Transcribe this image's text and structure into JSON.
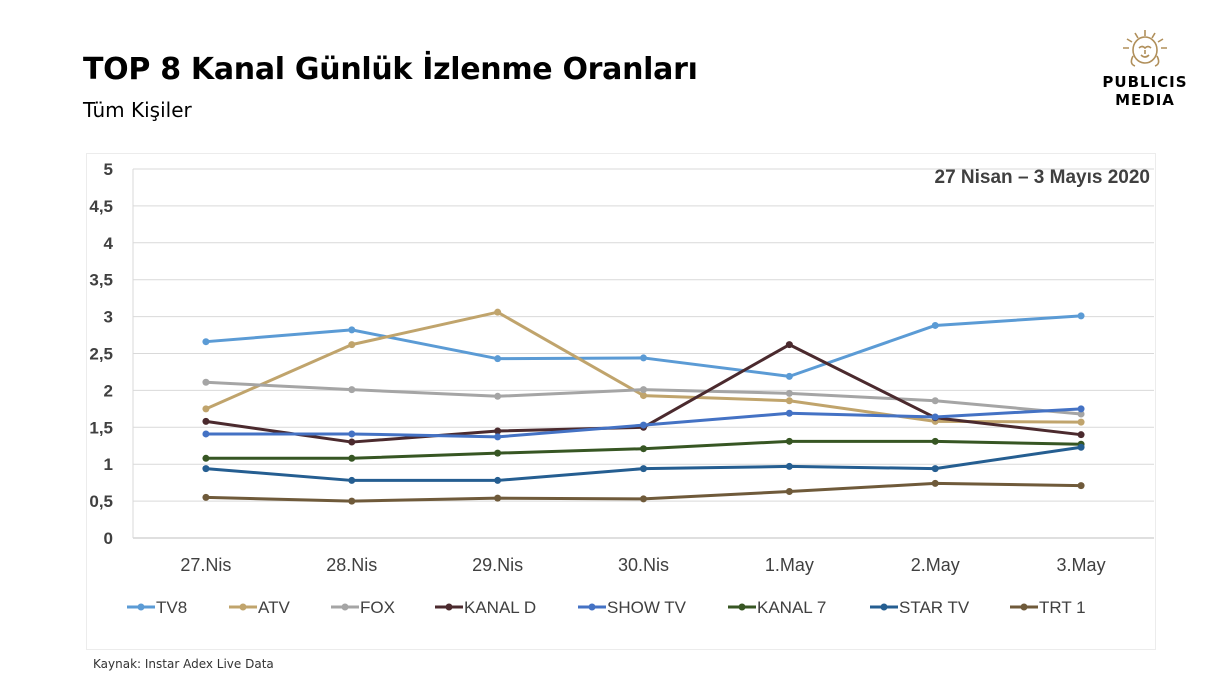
{
  "header": {
    "title": "TOP 8 Kanal Günlük İzlenme Oranları",
    "subtitle": "Tüm Kişiler"
  },
  "logo": {
    "line1": "PUBLICIS",
    "line2": "MEDIA",
    "icon": "lion-head-icon",
    "color": "#b08f5a"
  },
  "source": "Kaynak: Instar  Adex Live Data",
  "chart_data": {
    "type": "line",
    "annotation": "27 Nisan – 3 Mayıs 2020",
    "categories": [
      "27.Nis",
      "28.Nis",
      "29.Nis",
      "30.Nis",
      "1.May",
      "2.May",
      "3.May"
    ],
    "yticks": [
      "0",
      "0,5",
      "1",
      "1,5",
      "2",
      "2,5",
      "3",
      "3,5",
      "4",
      "4,5",
      "5"
    ],
    "ylim": [
      0,
      5
    ],
    "grid": true,
    "legend_position": "bottom",
    "series": [
      {
        "name": "TV8",
        "color": "#5b9bd5",
        "values": [
          2.66,
          2.82,
          2.43,
          2.44,
          2.19,
          2.88,
          3.01
        ]
      },
      {
        "name": "ATV",
        "color": "#c0a46c",
        "values": [
          1.75,
          2.62,
          3.06,
          1.93,
          1.86,
          1.58,
          1.57
        ]
      },
      {
        "name": "FOX",
        "color": "#a5a5a5",
        "values": [
          2.11,
          2.01,
          1.92,
          2.01,
          1.96,
          1.86,
          1.68
        ]
      },
      {
        "name": "KANAL D",
        "color": "#4b2a2e",
        "values": [
          1.58,
          1.3,
          1.45,
          1.5,
          2.62,
          1.63,
          1.4
        ]
      },
      {
        "name": "SHOW TV",
        "color": "#4472c4",
        "values": [
          1.41,
          1.41,
          1.37,
          1.53,
          1.69,
          1.64,
          1.75
        ]
      },
      {
        "name": "KANAL 7",
        "color": "#375623",
        "values": [
          1.08,
          1.08,
          1.15,
          1.21,
          1.31,
          1.31,
          1.27
        ]
      },
      {
        "name": "STAR TV",
        "color": "#255e91",
        "values": [
          0.94,
          0.78,
          0.78,
          0.94,
          0.97,
          0.94,
          1.23
        ]
      },
      {
        "name": "TRT 1",
        "color": "#6f5a3a",
        "values": [
          0.55,
          0.5,
          0.54,
          0.53,
          0.63,
          0.74,
          0.71
        ]
      }
    ]
  }
}
